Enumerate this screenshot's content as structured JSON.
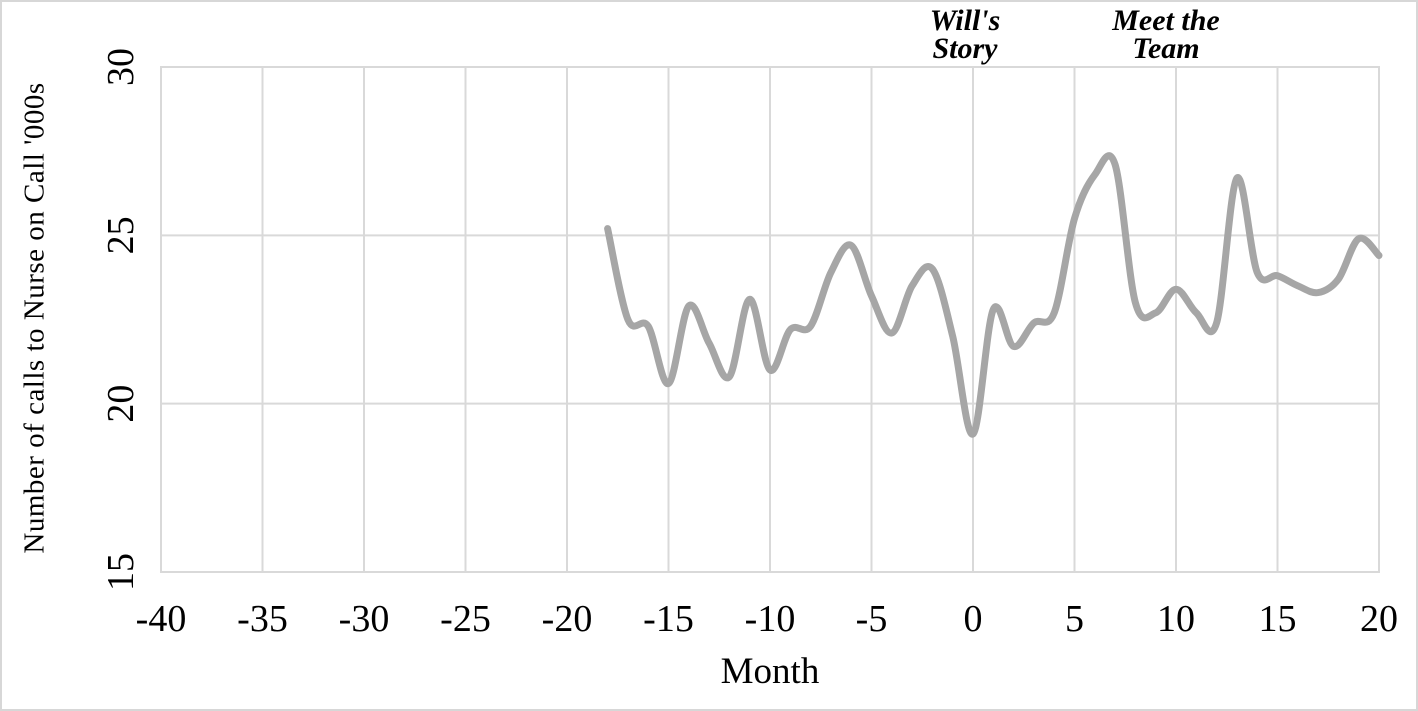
{
  "chart_data": {
    "type": "line",
    "title": "",
    "xlabel": "Month",
    "ylabel": "Number of calls to Nurse on Call '000s",
    "xlim": [
      -40,
      20
    ],
    "ylim": [
      15,
      30
    ],
    "x_ticks": [
      -40,
      -35,
      -30,
      -25,
      -20,
      -15,
      -10,
      -5,
      0,
      5,
      10,
      15,
      20
    ],
    "y_ticks": [
      15,
      20,
      25,
      30
    ],
    "grid": true,
    "legend": "none",
    "series": [
      {
        "name": "Number of calls to Nurse on Call '000s",
        "color": "#a6a6a6",
        "smooth": true,
        "x": [
          -18,
          -17,
          -16,
          -15,
          -14,
          -13,
          -12,
          -11,
          -10,
          -9,
          -8,
          -7,
          -6,
          -5,
          -4,
          -3,
          -2,
          -1,
          0,
          1,
          2,
          3,
          4,
          5,
          6,
          7,
          8,
          9,
          10,
          11,
          12,
          13,
          14,
          15,
          16,
          17,
          18,
          19,
          20
        ],
        "y": [
          25.2,
          22.5,
          22.3,
          20.6,
          22.9,
          21.8,
          20.8,
          23.1,
          21.0,
          22.2,
          22.3,
          23.9,
          24.7,
          23.2,
          22.1,
          23.5,
          24.0,
          22.0,
          19.1,
          22.8,
          21.7,
          22.4,
          22.7,
          25.5,
          26.8,
          27.1,
          23.0,
          22.7,
          23.4,
          22.7,
          22.4,
          26.7,
          23.9,
          23.8,
          23.5,
          23.3,
          23.7,
          24.9,
          24.4
        ]
      }
    ],
    "annotations": [
      {
        "lines": [
          "Will's",
          "Story"
        ],
        "month": -0.4
      },
      {
        "lines": [
          "Meet the",
          "Team"
        ],
        "month": 9.5
      }
    ]
  },
  "styles": {
    "line_color": "#a6a6a6",
    "grid_color": "#d9d9d9",
    "text_color": "#000000",
    "background": "#ffffff",
    "frame_border_color": "#d7d7d7"
  }
}
